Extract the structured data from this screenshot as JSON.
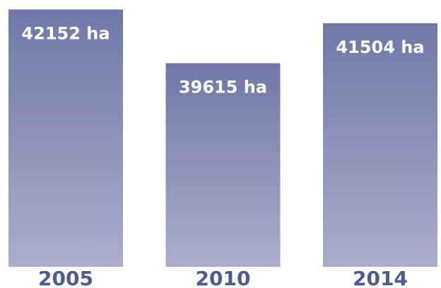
{
  "chart_data": {
    "type": "bar",
    "categories": [
      "2005",
      "2010",
      "2014"
    ],
    "values": [
      42152,
      39615,
      41504
    ],
    "value_labels": [
      "42152 ha",
      "39615 ha",
      "41504 ha"
    ],
    "color": "#6f78a7",
    "ylim": [
      30000,
      42600
    ]
  }
}
